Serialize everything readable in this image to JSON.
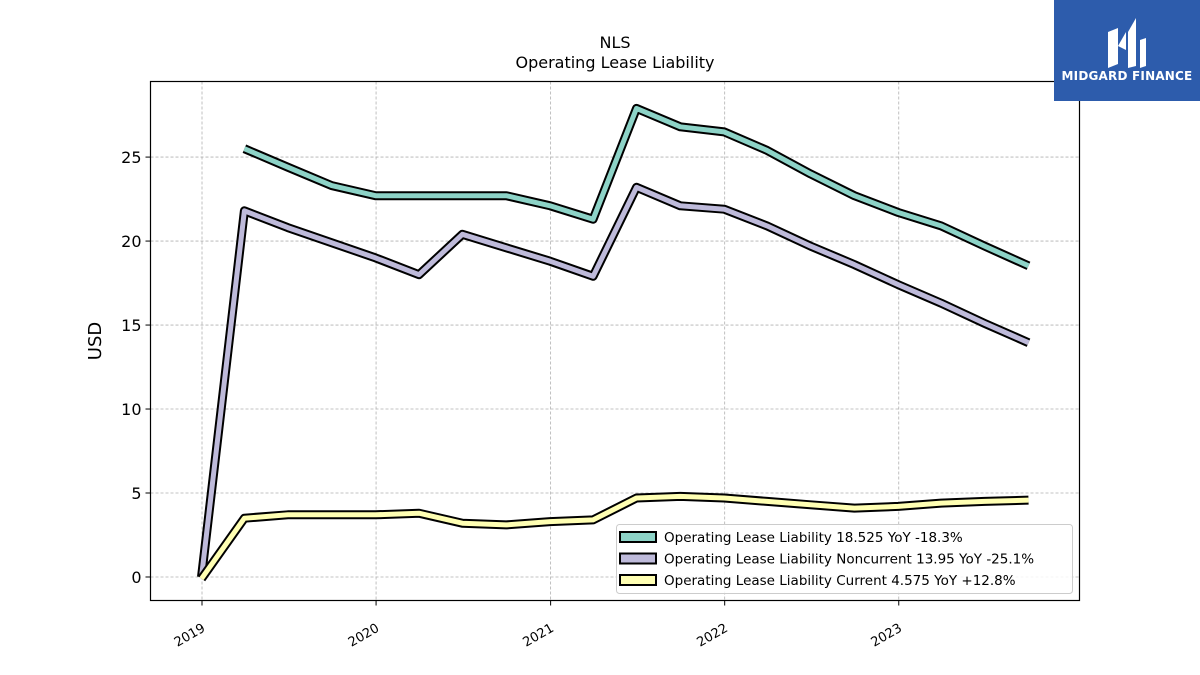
{
  "chart_data": {
    "type": "line",
    "title": "NLS",
    "subtitle": "Operating Lease Liability",
    "ylabel": "USD",
    "xlabel": "",
    "ylim": [
      -1.4,
      29.5
    ],
    "yticks": [
      0,
      5,
      10,
      15,
      20,
      25
    ],
    "xlim": [
      "2018-09-15",
      "2024-01-15"
    ],
    "xticks": [
      "2019",
      "2020",
      "2021",
      "2022",
      "2023"
    ],
    "grid": true,
    "legend_position": "lower-right",
    "series": [
      {
        "name": "Operating Lease Liability",
        "legend_label": "Operating Lease Liability  18.525 YoY -18.3%",
        "color": "#8dd3c7",
        "x": [
          "2019-03-31",
          "2019-06-30",
          "2019-09-30",
          "2019-12-31",
          "2020-03-31",
          "2020-06-30",
          "2020-09-30",
          "2020-12-31",
          "2021-03-31",
          "2021-06-30",
          "2021-09-30",
          "2021-12-31",
          "2022-03-31",
          "2022-06-30",
          "2022-09-30",
          "2022-12-31",
          "2023-03-31",
          "2023-06-30",
          "2023-09-30"
        ],
        "values": [
          25.5,
          24.4,
          23.3,
          22.7,
          22.7,
          22.7,
          22.7,
          22.1,
          21.3,
          27.9,
          26.8,
          26.5,
          25.4,
          24.0,
          22.7,
          21.7,
          20.9,
          19.7,
          18.525
        ]
      },
      {
        "name": "Operating Lease Liability Noncurrent",
        "legend_label": "Operating Lease Liability Noncurrent  13.95 YoY -25.1%",
        "color": "#bebada",
        "x": [
          "2018-12-31",
          "2019-03-31",
          "2019-06-30",
          "2019-09-30",
          "2019-12-31",
          "2020-03-31",
          "2020-06-30",
          "2020-09-30",
          "2020-12-31",
          "2021-03-31",
          "2021-06-30",
          "2021-09-30",
          "2021-12-31",
          "2022-03-31",
          "2022-06-30",
          "2022-09-30",
          "2022-12-31",
          "2023-03-31",
          "2023-06-30",
          "2023-09-30"
        ],
        "values": [
          0,
          21.8,
          20.8,
          19.9,
          19.0,
          18.0,
          20.4,
          19.6,
          18.8,
          17.9,
          23.2,
          22.1,
          21.9,
          20.9,
          19.7,
          18.6,
          17.4,
          16.3,
          15.1,
          13.95
        ]
      },
      {
        "name": "Operating Lease Liability Current",
        "legend_label": "Operating Lease Liability Current  4.575 YoY +12.8%",
        "color": "#ffffb3",
        "x": [
          "2018-12-31",
          "2019-03-31",
          "2019-06-30",
          "2019-09-30",
          "2019-12-31",
          "2020-03-31",
          "2020-06-30",
          "2020-09-30",
          "2020-12-31",
          "2021-03-31",
          "2021-06-30",
          "2021-09-30",
          "2021-12-31",
          "2022-03-31",
          "2022-06-30",
          "2022-09-30",
          "2022-12-31",
          "2023-03-31",
          "2023-06-30",
          "2023-09-30"
        ],
        "values": [
          -0.1,
          3.5,
          3.7,
          3.7,
          3.7,
          3.8,
          3.2,
          3.1,
          3.3,
          3.4,
          4.7,
          4.8,
          4.7,
          4.5,
          4.3,
          4.1,
          4.2,
          4.4,
          4.5,
          4.575
        ]
      }
    ]
  },
  "logo": {
    "text": "MIDGARD FINANCE",
    "bg_color": "#2d5cac"
  }
}
